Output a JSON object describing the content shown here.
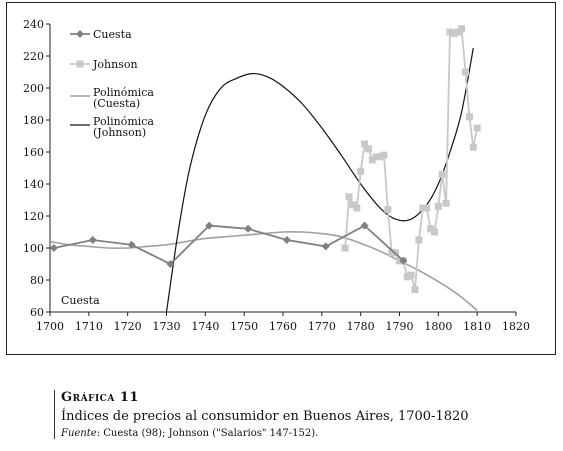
{
  "chart_data": {
    "type": "line",
    "title": "",
    "xlabel": "",
    "ylabel": "",
    "xlim": [
      1700,
      1820
    ],
    "ylim": [
      60,
      240
    ],
    "x_ticks": [
      1700,
      1710,
      1720,
      1730,
      1740,
      1750,
      1760,
      1770,
      1780,
      1790,
      1800,
      1810,
      1820
    ],
    "y_ticks": [
      60,
      80,
      100,
      120,
      140,
      160,
      180,
      200,
      220,
      240
    ],
    "grid": false,
    "legend_position": "top-left",
    "annotation": "Cuesta",
    "series": [
      {
        "name": "Cuesta",
        "kind": "line-markers",
        "marker": "diamond",
        "color": "#808080",
        "x": [
          1701,
          1711,
          1721,
          1731,
          1741,
          1751,
          1761,
          1771,
          1781,
          1791
        ],
        "y": [
          100,
          105,
          102,
          90,
          114,
          112,
          105,
          101,
          114,
          92
        ]
      },
      {
        "name": "Johnson",
        "kind": "line-markers",
        "marker": "square",
        "color": "#c8c8c8",
        "x": [
          1776,
          1777,
          1778,
          1779,
          1780,
          1781,
          1782,
          1783,
          1784,
          1785,
          1786,
          1787,
          1788,
          1789,
          1790,
          1791,
          1792,
          1793,
          1794,
          1795,
          1796,
          1797,
          1798,
          1799,
          1800,
          1801,
          1802,
          1803,
          1804,
          1805,
          1806,
          1807,
          1808,
          1809,
          1810
        ],
        "y": [
          100,
          132,
          127,
          125,
          148,
          165,
          162,
          155,
          157,
          157,
          158,
          124,
          97,
          97,
          92,
          92,
          82,
          83,
          74,
          105,
          125,
          125,
          112,
          110,
          126,
          146,
          128,
          235,
          234,
          235,
          237,
          210,
          182,
          163,
          175
        ]
      },
      {
        "name": "Polinómica (Cuesta)",
        "kind": "trend",
        "color": "#a0a0a0",
        "x": [
          1700,
          1705,
          1710,
          1715,
          1720,
          1725,
          1730,
          1735,
          1740,
          1745,
          1750,
          1755,
          1760,
          1765,
          1770,
          1775,
          1780,
          1785,
          1790,
          1795,
          1800,
          1805,
          1810
        ],
        "y": [
          104,
          102,
          101,
          100,
          100,
          101,
          102,
          104,
          106,
          107,
          108,
          109,
          110,
          110,
          109,
          107,
          103,
          98,
          92,
          86,
          79,
          71,
          61
        ]
      },
      {
        "name": "Polinómica (Johnson)",
        "kind": "trend",
        "color": "#111111",
        "x": [
          1730,
          1733,
          1736,
          1740,
          1744,
          1748,
          1752,
          1756,
          1760,
          1765,
          1770,
          1775,
          1780,
          1785,
          1789,
          1793,
          1797,
          1800,
          1803,
          1806,
          1809
        ],
        "y": [
          60,
          110,
          150,
          183,
          200,
          206,
          209,
          207,
          201,
          190,
          175,
          158,
          140,
          125,
          118,
          118,
          127,
          140,
          160,
          185,
          225
        ]
      }
    ]
  },
  "caption": {
    "label": "Gráfica 11",
    "title": "Índices de precios al consumidor en Buenos Aires, 1700-1820",
    "source_prefix": "Fuente",
    "source_text": ": Cuesta (98); Johnson (\"Salarios\" 147-152)."
  }
}
